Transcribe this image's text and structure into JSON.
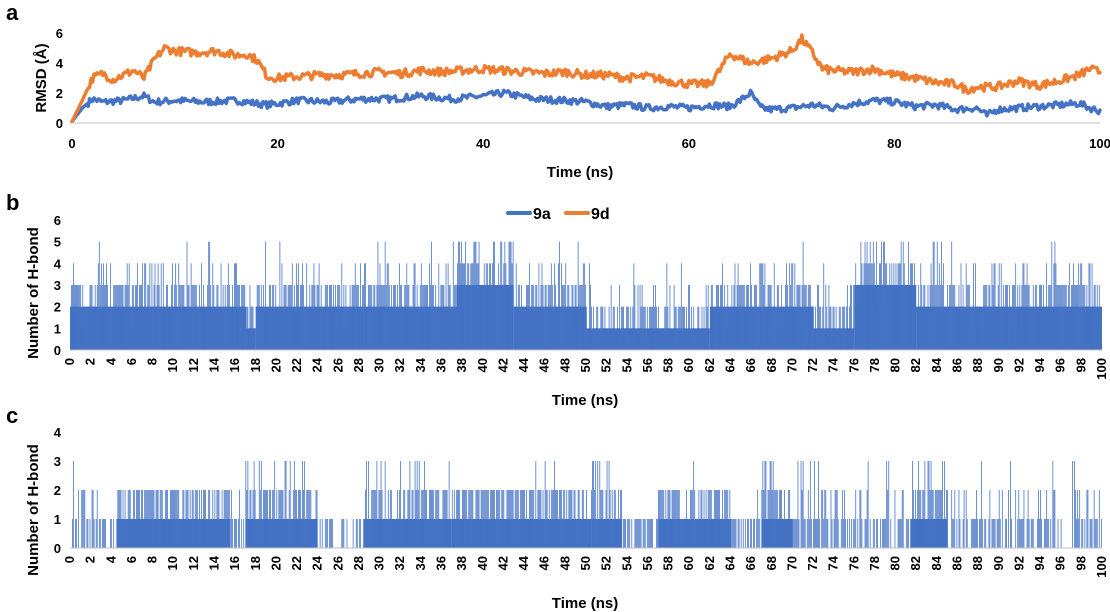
{
  "colors": {
    "series_9a": "#4472C4",
    "series_9d": "#ED7D31",
    "axis": "#BFBFBF"
  },
  "chart_data": [
    {
      "panel": "a",
      "type": "line",
      "xlabel": "Time (ns)",
      "ylabel": "RMSD (Å)",
      "xlim": [
        0,
        100
      ],
      "ylim": [
        0,
        6
      ],
      "xticks": [
        "0",
        "20",
        "40",
        "60",
        "80",
        "100"
      ],
      "yticks": [
        "0",
        "2",
        "4",
        "6"
      ],
      "grid": false,
      "series": [
        {
          "name": "9a",
          "color": "#4472C4",
          "x": [
            0,
            1,
            2,
            3,
            5,
            7,
            8,
            10,
            13,
            16,
            18,
            19,
            22,
            25,
            28,
            31,
            34,
            37,
            40,
            42,
            45,
            48,
            50,
            52,
            54,
            56,
            58,
            60,
            62,
            64,
            65,
            66,
            67,
            68,
            70,
            72,
            74,
            76,
            78,
            80,
            82,
            84,
            86,
            88,
            89,
            90,
            92,
            94,
            96,
            98,
            99,
            100
          ],
          "y": [
            0.1,
            1.0,
            1.6,
            1.4,
            1.5,
            1.8,
            1.4,
            1.5,
            1.4,
            1.5,
            1.3,
            1.2,
            1.5,
            1.4,
            1.6,
            1.6,
            1.8,
            1.6,
            1.8,
            2.0,
            1.6,
            1.5,
            1.4,
            1.1,
            1.2,
            1.0,
            1.1,
            1.0,
            1.2,
            1.1,
            1.5,
            2.0,
            1.0,
            0.9,
            1.0,
            1.2,
            1.0,
            1.3,
            1.5,
            1.4,
            1.1,
            1.2,
            0.9,
            1.0,
            0.5,
            0.9,
            1.0,
            1.1,
            1.2,
            1.3,
            1.0,
            0.8
          ]
        },
        {
          "name": "9d",
          "color": "#ED7D31",
          "x": [
            0,
            1,
            2,
            3,
            4,
            5,
            6,
            7,
            8,
            9,
            10,
            12,
            14,
            16,
            17,
            18,
            19,
            20,
            22,
            24,
            26,
            28,
            30,
            32,
            34,
            36,
            38,
            40,
            42,
            44,
            46,
            48,
            50,
            52,
            54,
            56,
            58,
            60,
            62,
            63,
            64,
            66,
            68,
            70,
            71,
            72,
            73,
            74,
            76,
            78,
            80,
            82,
            84,
            86,
            87,
            88,
            90,
            92,
            94,
            96,
            98,
            99,
            100
          ],
          "y": [
            0.1,
            1.5,
            3.0,
            3.3,
            2.9,
            3.2,
            3.5,
            3.0,
            4.2,
            5.0,
            4.8,
            4.7,
            4.8,
            4.5,
            4.6,
            4.2,
            3.1,
            3.0,
            3.1,
            3.2,
            3.2,
            3.3,
            3.4,
            3.3,
            3.5,
            3.4,
            3.5,
            3.6,
            3.5,
            3.4,
            3.3,
            3.4,
            3.2,
            3.2,
            3.0,
            3.1,
            2.8,
            2.6,
            2.6,
            3.5,
            4.6,
            4.0,
            4.3,
            4.8,
            5.6,
            4.7,
            3.6,
            3.5,
            3.4,
            3.6,
            3.2,
            3.0,
            2.7,
            2.6,
            2.2,
            2.4,
            2.4,
            2.8,
            2.5,
            2.8,
            3.2,
            3.6,
            3.4
          ]
        }
      ]
    },
    {
      "panel": "b",
      "type": "bar",
      "xlabel": "Time (ns)",
      "ylabel": "Number of H-bond",
      "xlim": [
        0,
        100
      ],
      "ylim": [
        0,
        6
      ],
      "xticks": [
        "0",
        "2",
        "4",
        "6",
        "8",
        "10",
        "12",
        "14",
        "16",
        "18",
        "20",
        "22",
        "24",
        "26",
        "28",
        "30",
        "32",
        "34",
        "36",
        "38",
        "40",
        "42",
        "44",
        "46",
        "48",
        "50",
        "52",
        "54",
        "56",
        "58",
        "60",
        "62",
        "64",
        "66",
        "68",
        "70",
        "72",
        "74",
        "76",
        "78",
        "80",
        "82",
        "84",
        "86",
        "88",
        "90",
        "92",
        "94",
        "96",
        "98",
        "100"
      ],
      "yticks": [
        "0",
        "1",
        "2",
        "3",
        "4",
        "5",
        "6"
      ],
      "legend": {
        "position": "top-center",
        "entries": [
          "9a",
          "9d"
        ]
      },
      "color": "#4472C4",
      "segments": [
        {
          "from": 0,
          "to": 17,
          "base": 2,
          "mid": 3,
          "high": 4,
          "spike": 5
        },
        {
          "from": 17,
          "to": 18,
          "base": 1,
          "mid": 2,
          "high": 3,
          "spike": 4
        },
        {
          "from": 18,
          "to": 37.5,
          "base": 2,
          "mid": 3,
          "high": 4,
          "spike": 5
        },
        {
          "from": 37.5,
          "to": 43,
          "base": 3,
          "mid": 4,
          "high": 5,
          "spike": 5
        },
        {
          "from": 43,
          "to": 50,
          "base": 2,
          "mid": 3,
          "high": 4,
          "spike": 5
        },
        {
          "from": 50,
          "to": 62,
          "base": 1,
          "mid": 2,
          "high": 3,
          "spike": 4
        },
        {
          "from": 62,
          "to": 72,
          "base": 2,
          "mid": 3,
          "high": 4,
          "spike": 5
        },
        {
          "from": 72,
          "to": 76,
          "base": 1,
          "mid": 2,
          "high": 3,
          "spike": 4
        },
        {
          "from": 76,
          "to": 82,
          "base": 3,
          "mid": 4,
          "high": 5,
          "spike": 5
        },
        {
          "from": 82,
          "to": 100,
          "base": 2,
          "mid": 3,
          "high": 4,
          "spike": 5
        }
      ]
    },
    {
      "panel": "c",
      "type": "bar",
      "xlabel": "Time (ns)",
      "ylabel": "Number of H-bond",
      "xlim": [
        0,
        100
      ],
      "ylim": [
        0,
        4
      ],
      "xticks": [
        "0",
        "2",
        "4",
        "6",
        "8",
        "10",
        "12",
        "14",
        "16",
        "18",
        "20",
        "22",
        "24",
        "26",
        "28",
        "30",
        "32",
        "34",
        "36",
        "38",
        "40",
        "42",
        "44",
        "46",
        "48",
        "50",
        "52",
        "54",
        "56",
        "58",
        "60",
        "62",
        "64",
        "66",
        "68",
        "70",
        "72",
        "74",
        "76",
        "78",
        "80",
        "82",
        "84",
        "86",
        "88",
        "90",
        "92",
        "94",
        "96",
        "98",
        "100"
      ],
      "yticks": [
        "0",
        "1",
        "2",
        "3",
        "4"
      ],
      "color": "#4472C4",
      "segments": [
        {
          "from": 0,
          "to": 4.5,
          "base": 0,
          "mid": 1,
          "high": 2,
          "spike": 3
        },
        {
          "from": 4.5,
          "to": 15.5,
          "base": 1,
          "mid": 2,
          "high": 2,
          "spike": 3
        },
        {
          "from": 15.5,
          "to": 17,
          "base": 0,
          "mid": 1,
          "high": 2,
          "spike": 2
        },
        {
          "from": 17,
          "to": 24,
          "base": 1,
          "mid": 2,
          "high": 3,
          "spike": 3
        },
        {
          "from": 24,
          "to": 28.5,
          "base": 0,
          "mid": 1,
          "high": 1,
          "spike": 1
        },
        {
          "from": 28.5,
          "to": 37,
          "base": 1,
          "mid": 2,
          "high": 3,
          "spike": 3
        },
        {
          "from": 37,
          "to": 50.5,
          "base": 1,
          "mid": 2,
          "high": 2,
          "spike": 3
        },
        {
          "from": 50.5,
          "to": 53.5,
          "base": 1,
          "mid": 2,
          "high": 3,
          "spike": 3
        },
        {
          "from": 53.5,
          "to": 57,
          "base": 0,
          "mid": 1,
          "high": 1,
          "spike": 2
        },
        {
          "from": 57,
          "to": 64,
          "base": 1,
          "mid": 2,
          "high": 2,
          "spike": 3
        },
        {
          "from": 64,
          "to": 67,
          "base": 0,
          "mid": 1,
          "high": 1,
          "spike": 2
        },
        {
          "from": 67,
          "to": 70,
          "base": 1,
          "mid": 2,
          "high": 3,
          "spike": 3
        },
        {
          "from": 70,
          "to": 81.5,
          "base": 0,
          "mid": 1,
          "high": 2,
          "spike": 3
        },
        {
          "from": 81.5,
          "to": 85,
          "base": 1,
          "mid": 2,
          "high": 3,
          "spike": 3
        },
        {
          "from": 85,
          "to": 100,
          "base": 0,
          "mid": 1,
          "high": 2,
          "spike": 3
        }
      ]
    }
  ]
}
